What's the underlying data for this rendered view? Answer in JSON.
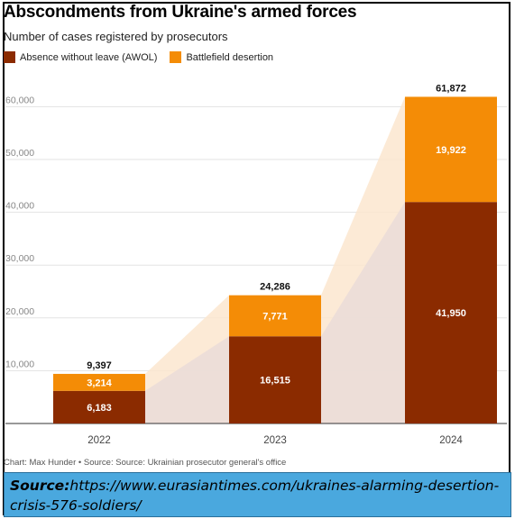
{
  "header": {
    "title": "Abscondments from Ukraine's armed forces",
    "subtitle": "Number of cases registered by prosecutors"
  },
  "colors": {
    "awol": "#8b2b00",
    "desertion": "#f48c06",
    "band": "#fbe6cf",
    "band_dark": "#eadcd8"
  },
  "chart_data": {
    "type": "bar",
    "stacked": true,
    "categories": [
      "2022",
      "2023",
      "2024"
    ],
    "series": [
      {
        "name": "Absence without leave (AWOL)",
        "values": [
          6183,
          16515,
          41950
        ],
        "labels": [
          "6,183",
          "16,515",
          "41,950"
        ]
      },
      {
        "name": "Battlefield desertion",
        "values": [
          3214,
          7771,
          19922
        ],
        "labels": [
          "3,214",
          "7,771",
          "19,922"
        ]
      }
    ],
    "totals": [
      9397,
      24286,
      61872
    ],
    "total_labels": [
      "9,397",
      "24,286",
      "61,872"
    ],
    "yticks": [
      10000,
      20000,
      30000,
      40000,
      50000,
      60000
    ],
    "ytick_labels": [
      "10,000",
      "20,000",
      "30,000",
      "40,000",
      "50,000",
      "60,000"
    ],
    "ylim": [
      0,
      61872
    ],
    "grid": true,
    "legend_position": "top-left"
  },
  "footer": {
    "credit": "Chart: Max Hunder • Source: Source: Ukrainian prosecutor general's office",
    "source_label": "Source:",
    "source_url": "https://www.eurasiantimes.com/ukraines-alarming-desertion-crisis-576-soldiers/"
  }
}
